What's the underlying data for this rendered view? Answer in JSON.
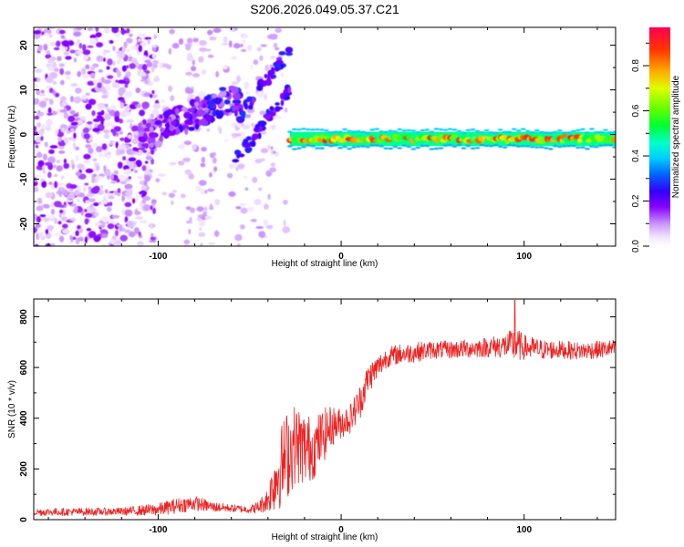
{
  "figure": {
    "title": "S206.2026.049.05.37.C21"
  },
  "chart_data": [
    {
      "type": "heatmap",
      "title": "",
      "xlabel": "Height of straight line (km)",
      "ylabel": "Frequency (Hz)",
      "xlim": [
        -168,
        150
      ],
      "ylim": [
        -25,
        24
      ],
      "xticks": [
        -100,
        0,
        100
      ],
      "xtick_labels": [
        "-100",
        "0",
        "100"
      ],
      "yticks": [
        -20,
        -10,
        0,
        10,
        20
      ],
      "ytick_labels": [
        "-20",
        "-10",
        "0",
        "10",
        "20"
      ],
      "colorbar": {
        "label": "Normalized spectral amplitude",
        "range": [
          0,
          0.97
        ],
        "ticks": [
          0.0,
          0.2,
          0.4,
          0.6,
          0.8
        ],
        "tick_labels": [
          "0.0",
          "0.2",
          "0.4",
          "0.6",
          "0.8"
        ],
        "colormap": "rainbow (purple → red)"
      },
      "features": {
        "strong_line": {
          "x_start": -28,
          "x_end": 150,
          "freq_hz": -1,
          "amplitude": [
            0.5,
            0.95
          ]
        },
        "rising_streak_1": {
          "x_start": -110,
          "x_end": -55,
          "freq_start_hz": -1,
          "freq_end_hz": 9,
          "amplitude": [
            0.1,
            0.35
          ]
        },
        "rising_streak_2": {
          "x_start": -58,
          "x_end": -28,
          "freq_start_hz": -6,
          "freq_end_hz": 10,
          "amplitude": [
            0.15,
            0.3
          ]
        },
        "noise_region": {
          "x_start": -168,
          "x_end": -30,
          "freq_range_hz": [
            -25,
            24
          ],
          "amplitude": [
            0.0,
            0.15
          ]
        }
      }
    },
    {
      "type": "line",
      "title": "",
      "xlabel": "Height of straight line (km)",
      "ylabel": "SNR (10 * v/v)",
      "xlim": [
        -168,
        150
      ],
      "ylim": [
        0,
        870
      ],
      "xticks": [
        -100,
        0,
        100
      ],
      "xtick_labels": [
        "-100",
        "0",
        "100"
      ],
      "yticks": [
        0,
        200,
        400,
        600,
        800
      ],
      "ytick_labels": [
        "0",
        "200",
        "400",
        "600",
        "800"
      ],
      "series": [
        {
          "name": "SNR",
          "color": "#ee2222",
          "x_samples": [
            -168,
            -120,
            -100,
            -90,
            -80,
            -70,
            -60,
            -50,
            -45,
            -40,
            -35,
            -30,
            -25,
            -20,
            -15,
            -10,
            -5,
            0,
            5,
            10,
            15,
            20,
            25,
            30,
            40,
            50,
            60,
            80,
            90,
            95,
            100,
            110,
            120,
            130,
            140,
            150
          ],
          "mean_values": [
            30,
            32,
            40,
            55,
            65,
            50,
            45,
            40,
            50,
            80,
            180,
            250,
            300,
            280,
            280,
            330,
            370,
            380,
            400,
            460,
            560,
            600,
            640,
            650,
            660,
            670,
            670,
            680,
            685,
            690,
            680,
            670,
            670,
            665,
            670,
            675
          ],
          "noise_amplitude": [
            15,
            15,
            25,
            30,
            30,
            20,
            15,
            15,
            25,
            50,
            150,
            180,
            160,
            150,
            120,
            110,
            80,
            60,
            60,
            70,
            60,
            50,
            40,
            40,
            40,
            35,
            35,
            40,
            50,
            70,
            50,
            40,
            35,
            35,
            35,
            35
          ],
          "peak": {
            "x": 95,
            "y": 865
          }
        }
      ]
    }
  ]
}
